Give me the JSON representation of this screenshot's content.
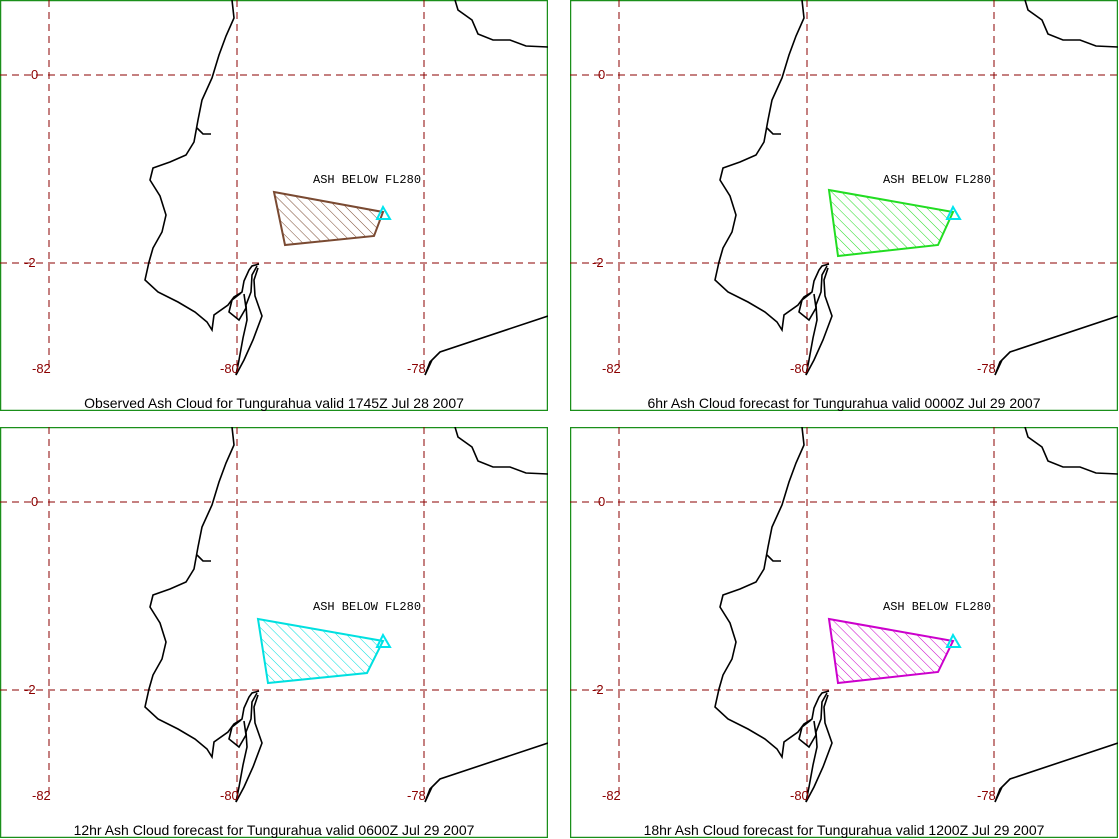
{
  "colors": {
    "grid": "#8b0000",
    "border": "#1a8f1a",
    "coast": "#000000",
    "volcano": "#00e5ee"
  },
  "panels": [
    {
      "caption": "Observed Ash Cloud for Tungurahua valid 1745Z Jul 28 2007",
      "ash_label": "ASH BELOW FL280",
      "cloud_color": "#7a4a32"
    },
    {
      "caption": "6hr Ash Cloud forecast for Tungurahua valid 0000Z Jul 29 2007",
      "ash_label": "ASH BELOW FL280",
      "cloud_color": "#22dd22"
    },
    {
      "caption": "12hr Ash Cloud forecast for Tungurahua valid 0600Z Jul 29 2007",
      "ash_label": "ASH BELOW FL280",
      "cloud_color": "#00e0e0"
    },
    {
      "caption": "18hr Ash Cloud forecast for Tungurahua valid 1200Z Jul 29 2007",
      "ash_label": "ASH BELOW FL280",
      "cloud_color": "#cc00cc"
    }
  ],
  "ticks": {
    "lat": [
      "0",
      "-2"
    ],
    "lon": [
      "-82",
      "-80",
      "-78"
    ]
  }
}
